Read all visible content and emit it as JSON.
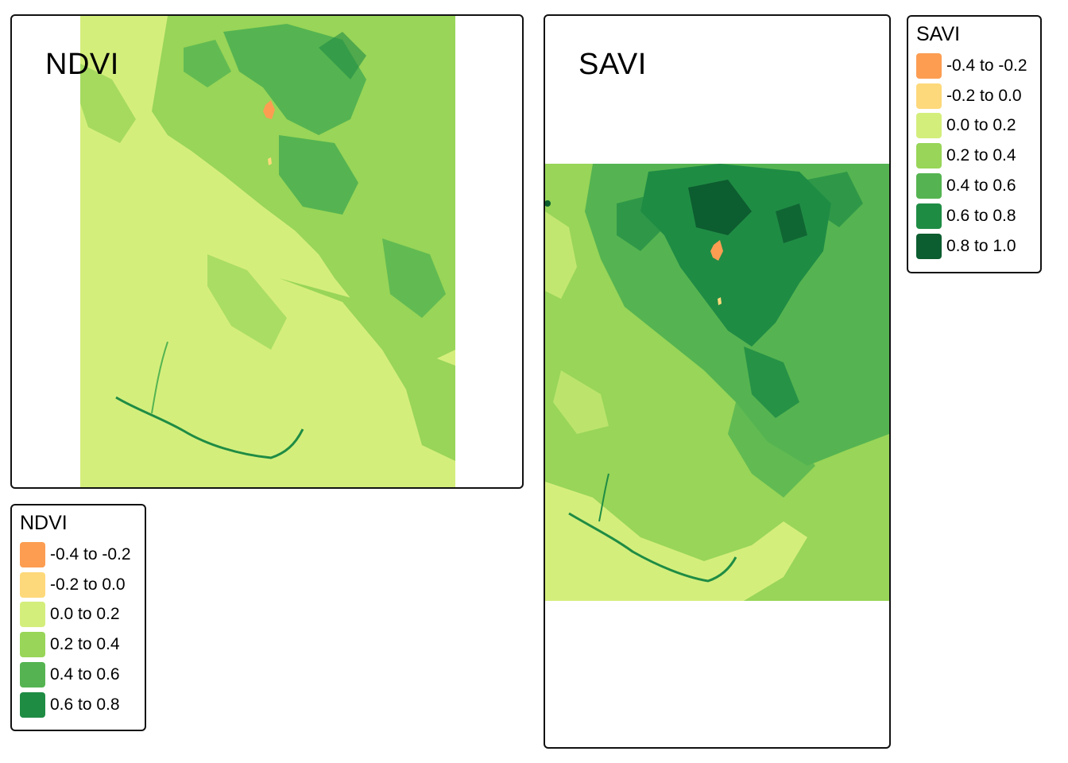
{
  "maps": [
    {
      "title": "NDVI"
    },
    {
      "title": "SAVI"
    }
  ],
  "legends": {
    "ndvi": {
      "title": "NDVI",
      "items": [
        {
          "label": "-0.4 to -0.2",
          "color": "#fc9d52"
        },
        {
          "label": "-0.2 to 0.0",
          "color": "#fed97b"
        },
        {
          "label": "0.0 to 0.2",
          "color": "#d4ee7c"
        },
        {
          "label": "0.2 to 0.4",
          "color": "#98d558"
        },
        {
          "label": "0.4 to 0.6",
          "color": "#55b451"
        },
        {
          "label": "0.6 to 0.8",
          "color": "#1f8c44"
        }
      ]
    },
    "savi": {
      "title": "SAVI",
      "items": [
        {
          "label": "-0.4 to -0.2",
          "color": "#fc9d52"
        },
        {
          "label": "-0.2 to 0.0",
          "color": "#fed97b"
        },
        {
          "label": "0.0 to 0.2",
          "color": "#d4ee7c"
        },
        {
          "label": "0.2 to 0.4",
          "color": "#98d558"
        },
        {
          "label": "0.4 to 0.6",
          "color": "#55b451"
        },
        {
          "label": "0.6 to 0.8",
          "color": "#1f8c44"
        },
        {
          "label": "0.8 to 1.0",
          "color": "#0c5d2f"
        }
      ]
    }
  }
}
